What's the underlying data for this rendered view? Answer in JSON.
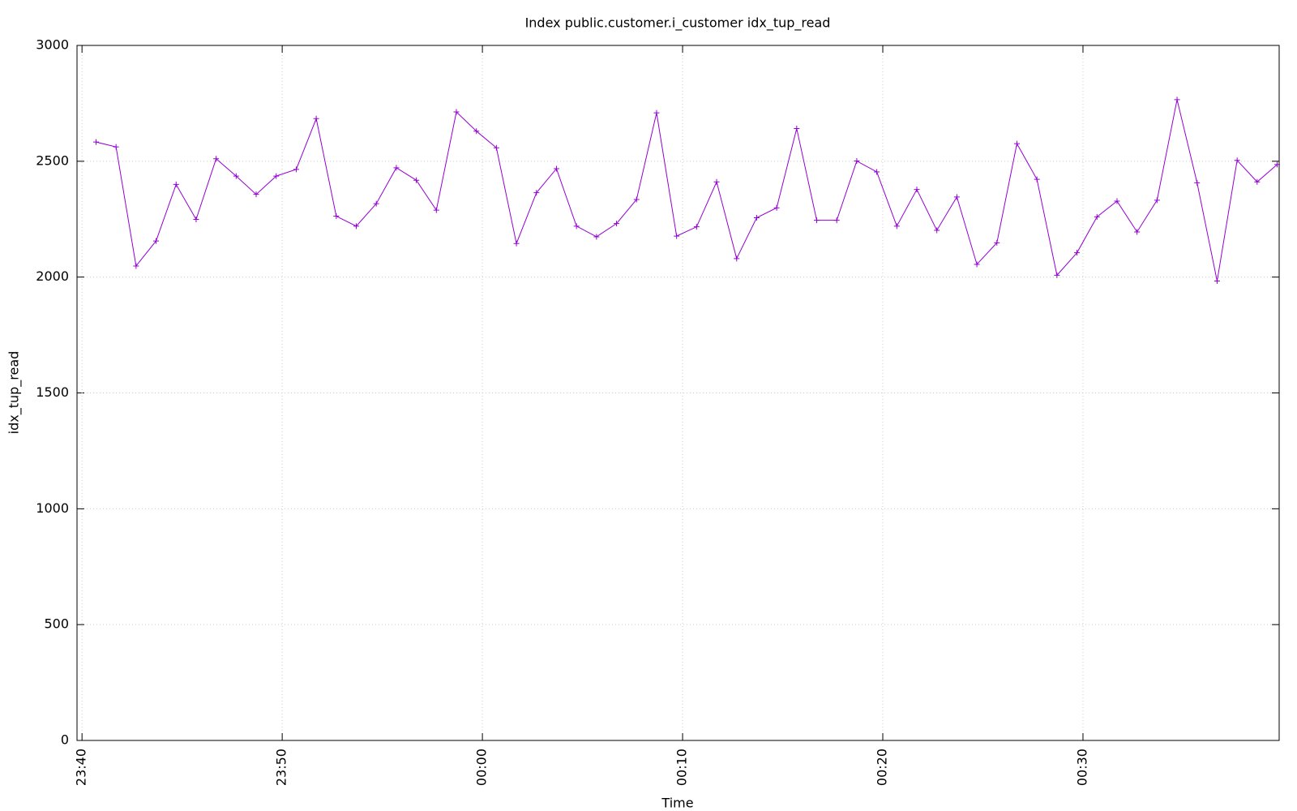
{
  "chart_data": {
    "type": "line",
    "title": "Index public.customer.i_customer idx_tup_read",
    "xlabel": "Time",
    "ylabel": "idx_tup_read",
    "x": [
      "23:40:42",
      "23:41:42",
      "23:42:42",
      "23:43:42",
      "23:44:42",
      "23:45:42",
      "23:46:42",
      "23:47:42",
      "23:48:42",
      "23:49:42",
      "23:50:42",
      "23:51:42",
      "23:52:42",
      "23:53:42",
      "23:54:42",
      "23:55:42",
      "23:56:42",
      "23:57:42",
      "23:58:42",
      "23:59:42",
      "00:00:42",
      "00:01:42",
      "00:02:42",
      "00:03:42",
      "00:04:42",
      "00:05:42",
      "00:06:42",
      "00:07:42",
      "00:08:42",
      "00:09:42",
      "00:10:42",
      "00:11:42",
      "00:12:42",
      "00:13:42",
      "00:14:42",
      "00:15:42",
      "00:16:42",
      "00:17:42",
      "00:18:42",
      "00:19:42",
      "00:20:42",
      "00:21:42",
      "00:22:42",
      "00:23:42",
      "00:24:42",
      "00:25:42",
      "00:26:42",
      "00:27:42",
      "00:28:42",
      "00:29:42",
      "00:30:42",
      "00:31:42",
      "00:32:42",
      "00:33:42",
      "00:34:42",
      "00:35:42",
      "00:36:42",
      "00:37:42",
      "00:38:42",
      "00:39:42"
    ],
    "series": [
      {
        "name": "idx_tup_read",
        "color": "#9400d3",
        "values": [
          2583,
          2562,
          2048,
          2156,
          2400,
          2249,
          2511,
          2436,
          2357,
          2436,
          2465,
          2684,
          2263,
          2220,
          2317,
          2472,
          2418,
          2289,
          2713,
          2630,
          2558,
          2145,
          2364,
          2468,
          2220,
          2174,
          2231,
          2335,
          2709,
          2177,
          2217,
          2411,
          2080,
          2256,
          2299,
          2641,
          2245,
          2245,
          2501,
          2454,
          2220,
          2378,
          2202,
          2346,
          2055,
          2148,
          2576,
          2422,
          2008,
          2105,
          2260,
          2328,
          2195,
          2332,
          2766,
          2407,
          1983,
          2504,
          2411,
          2486
        ]
      }
    ],
    "xlim": [
      "23:39:45",
      "00:39:48"
    ],
    "xticks": [
      "23:40",
      "23:50",
      "00:00",
      "00:10",
      "00:20",
      "00:30"
    ],
    "ylim": [
      0,
      3000
    ],
    "yticks": [
      0,
      500,
      1000,
      1500,
      2000,
      2500,
      3000
    ],
    "grid": true
  }
}
